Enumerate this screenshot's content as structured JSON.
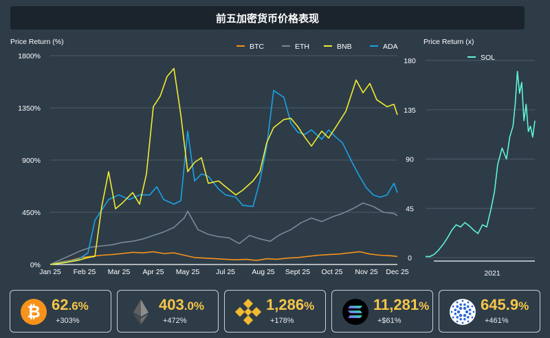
{
  "title": "前五加密货币价格表现",
  "colors": {
    "background": "#2e3c48",
    "title_bg": "#1b242c",
    "BTC": "#f7931a",
    "ETH": "#7a8a96",
    "BNB": "#f3ee2e",
    "ADA": "#1aa3e8",
    "SOL": "#5ff5d5",
    "card_value": "#f6c648"
  },
  "chart_data": [
    {
      "type": "line",
      "ylabel": "Price Return (%)",
      "ylim": [
        0,
        1800
      ],
      "y_ticks": [
        "0%",
        "450%",
        "900%",
        "1350%",
        "1800%"
      ],
      "x_tick_labels": [
        "Jan 25",
        "Feb 25",
        "Mar 25",
        "Apr 25",
        "May 25",
        "Jul 25",
        "Aug 25",
        "Sept 25",
        "Oct 25",
        "Nov 25",
        "Dec 25"
      ],
      "x_tick_positions": [
        0,
        1,
        2,
        3,
        4,
        5.1,
        6.2,
        7.2,
        8.2,
        9.2,
        10.1
      ],
      "xlim": [
        0,
        10.1
      ],
      "legend": "top-right",
      "grid": true,
      "series": [
        {
          "name": "BTC",
          "x": [
            0,
            0.3,
            0.6,
            0.9,
            1.2,
            1.5,
            1.8,
            2.1,
            2.4,
            2.7,
            3.0,
            3.3,
            3.6,
            3.9,
            4.2,
            4.5,
            4.8,
            5.1,
            5.4,
            5.7,
            6.0,
            6.3,
            6.6,
            6.9,
            7.2,
            7.5,
            7.8,
            8.1,
            8.4,
            8.7,
            9.0,
            9.3,
            9.6,
            9.9,
            10.1
          ],
          "values": [
            0,
            20,
            35,
            60,
            70,
            80,
            85,
            95,
            105,
            100,
            110,
            95,
            100,
            80,
            60,
            55,
            50,
            45,
            40,
            45,
            35,
            50,
            45,
            55,
            60,
            70,
            80,
            85,
            90,
            100,
            110,
            90,
            80,
            75,
            70
          ]
        },
        {
          "name": "ETH",
          "x": [
            0,
            0.3,
            0.6,
            0.9,
            1.2,
            1.5,
            1.8,
            2.1,
            2.4,
            2.7,
            3.0,
            3.3,
            3.6,
            3.9,
            4.0,
            4.3,
            4.6,
            4.9,
            5.2,
            5.5,
            5.8,
            6.1,
            6.4,
            6.7,
            7.0,
            7.3,
            7.6,
            7.9,
            8.2,
            8.5,
            8.8,
            9.1,
            9.4,
            9.7,
            10.0,
            10.1
          ],
          "values": [
            0,
            40,
            80,
            120,
            150,
            160,
            170,
            190,
            200,
            220,
            250,
            280,
            320,
            400,
            460,
            300,
            260,
            240,
            230,
            180,
            250,
            220,
            200,
            260,
            300,
            360,
            400,
            370,
            410,
            440,
            480,
            530,
            500,
            450,
            440,
            420
          ]
        },
        {
          "name": "BNB",
          "x": [
            0,
            0.4,
            0.8,
            1.1,
            1.3,
            1.5,
            1.7,
            1.9,
            2.1,
            2.4,
            2.6,
            2.8,
            3.0,
            3.2,
            3.4,
            3.6,
            3.8,
            4.0,
            4.2,
            4.4,
            4.6,
            4.9,
            5.1,
            5.4,
            5.6,
            5.9,
            6.1,
            6.3,
            6.5,
            6.8,
            7.0,
            7.2,
            7.4,
            7.6,
            7.9,
            8.1,
            8.3,
            8.6,
            8.9,
            9.1,
            9.3,
            9.5,
            9.8,
            10.0,
            10.1
          ],
          "values": [
            0,
            15,
            35,
            60,
            70,
            500,
            800,
            480,
            530,
            620,
            520,
            780,
            1360,
            1450,
            1620,
            1690,
            1290,
            800,
            880,
            920,
            700,
            720,
            670,
            600,
            640,
            720,
            800,
            1050,
            1180,
            1250,
            1260,
            1190,
            1100,
            1020,
            1150,
            1090,
            1180,
            1320,
            1590,
            1480,
            1560,
            1420,
            1360,
            1380,
            1290
          ]
        },
        {
          "name": "ADA",
          "x": [
            0,
            0.4,
            0.8,
            1.1,
            1.3,
            1.5,
            1.7,
            2.0,
            2.3,
            2.6,
            2.9,
            3.1,
            3.3,
            3.6,
            3.8,
            4.0,
            4.2,
            4.4,
            4.6,
            4.9,
            5.1,
            5.4,
            5.6,
            5.9,
            6.1,
            6.3,
            6.5,
            6.8,
            7.0,
            7.2,
            7.4,
            7.6,
            7.9,
            8.1,
            8.3,
            8.5,
            8.8,
            9.0,
            9.2,
            9.4,
            9.6,
            9.8,
            10.0,
            10.1
          ],
          "values": [
            0,
            20,
            40,
            100,
            380,
            470,
            560,
            600,
            560,
            600,
            600,
            670,
            560,
            520,
            550,
            1150,
            720,
            780,
            760,
            650,
            600,
            580,
            510,
            500,
            720,
            1020,
            1500,
            1440,
            1220,
            1140,
            1120,
            1160,
            1080,
            1160,
            1100,
            1050,
            870,
            760,
            660,
            600,
            580,
            600,
            700,
            620
          ]
        }
      ]
    },
    {
      "type": "line",
      "ylabel": "Price Return (x)",
      "ylim": [
        0,
        180
      ],
      "y_ticks": [
        "0",
        "45",
        "90",
        "135",
        "180"
      ],
      "x_tick_labels": [
        "2021"
      ],
      "legend": "top-left",
      "series": [
        {
          "name": "SOL",
          "x": [
            0,
            0.04,
            0.08,
            0.12,
            0.16,
            0.2,
            0.24,
            0.28,
            0.32,
            0.36,
            0.4,
            0.44,
            0.48,
            0.52,
            0.56,
            0.6,
            0.63,
            0.66,
            0.7,
            0.74,
            0.77,
            0.8,
            0.82,
            0.84,
            0.86,
            0.88,
            0.9,
            0.92,
            0.94,
            0.96,
            0.98,
            1.0
          ],
          "values": [
            1,
            1,
            3,
            7,
            12,
            18,
            25,
            30,
            28,
            32,
            29,
            25,
            22,
            30,
            28,
            45,
            60,
            85,
            100,
            90,
            110,
            120,
            140,
            170,
            150,
            160,
            125,
            140,
            115,
            120,
            110,
            125
          ]
        }
      ]
    }
  ],
  "cards": [
    {
      "name": "btc",
      "value_main": "62",
      "value_dec": ".6%",
      "sub": "+303%"
    },
    {
      "name": "eth",
      "value_main": "403",
      "value_dec": ".0%",
      "sub": "+472%"
    },
    {
      "name": "bnb",
      "value_main": "1,286",
      "value_dec": "%",
      "sub": "+178%"
    },
    {
      "name": "sol",
      "value_main": "11,281",
      "value_dec": "%",
      "sub": "+$61%"
    },
    {
      "name": "ada",
      "value_main": "645.9",
      "value_dec": "%",
      "sub": "+461%"
    }
  ]
}
